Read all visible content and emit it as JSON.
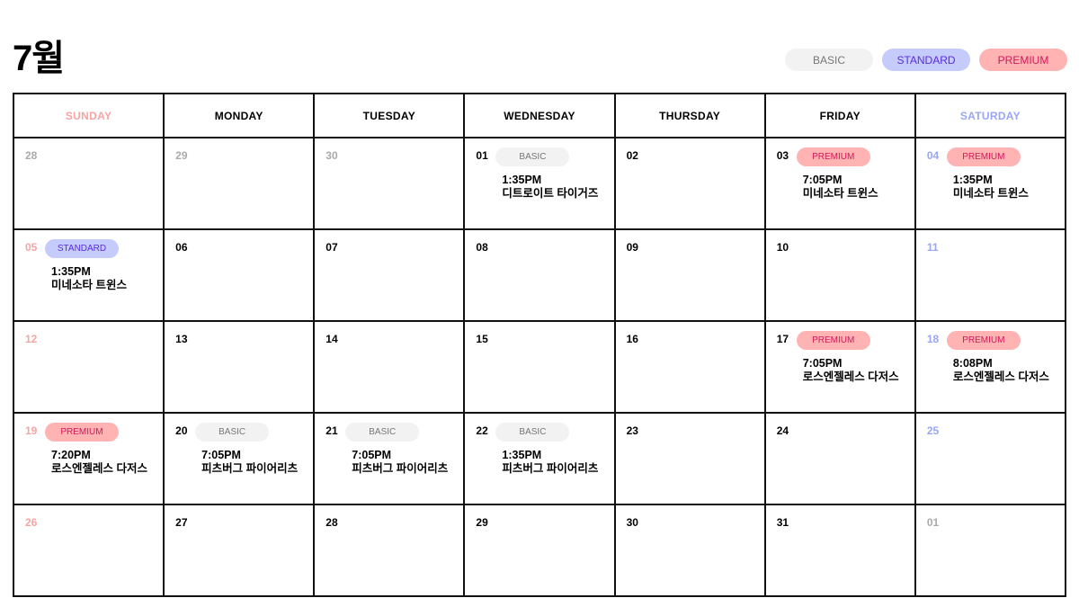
{
  "title": "7월",
  "legend": [
    {
      "label": "BASIC",
      "type": "basic"
    },
    {
      "label": "STANDARD",
      "type": "standard"
    },
    {
      "label": "PREMIUM",
      "type": "premium"
    }
  ],
  "colors": {
    "basic": "#f2f2f2",
    "standard": "#c5cbfb",
    "premium": "#ffb3b3",
    "sunday": "#f9a3a3",
    "saturday": "#9aa6f5"
  },
  "weekdays": [
    "SUNDAY",
    "MONDAY",
    "TUESDAY",
    "WEDNESDAY",
    "THURSDAY",
    "FRIDAY",
    "SATURDAY"
  ],
  "weeks": [
    [
      {
        "d": "28",
        "other": true
      },
      {
        "d": "29",
        "other": true
      },
      {
        "d": "30",
        "other": true
      },
      {
        "d": "01",
        "badge": "BASIC",
        "type": "basic",
        "time": "1:35PM",
        "team": "디트로이트 타이거즈"
      },
      {
        "d": "02"
      },
      {
        "d": "03",
        "badge": "PREMIUM",
        "type": "premium",
        "time": "7:05PM",
        "team": "미네소타 트윈스"
      },
      {
        "d": "04",
        "badge": "PREMIUM",
        "type": "premium",
        "time": "1:35PM",
        "team": "미네소타 트윈스"
      }
    ],
    [
      {
        "d": "05",
        "badge": "STANDARD",
        "type": "standard",
        "time": "1:35PM",
        "team": "미네소타 트윈스"
      },
      {
        "d": "06"
      },
      {
        "d": "07"
      },
      {
        "d": "08"
      },
      {
        "d": "09"
      },
      {
        "d": "10"
      },
      {
        "d": "11"
      }
    ],
    [
      {
        "d": "12"
      },
      {
        "d": "13"
      },
      {
        "d": "14"
      },
      {
        "d": "15"
      },
      {
        "d": "16"
      },
      {
        "d": "17",
        "badge": "PREMIUM",
        "type": "premium",
        "time": "7:05PM",
        "team": "로스엔젤레스 다저스"
      },
      {
        "d": "18",
        "badge": "PREMIUM",
        "type": "premium",
        "time": "8:08PM",
        "team": "로스엔젤레스 다저스"
      }
    ],
    [
      {
        "d": "19",
        "badge": "PREMIUM",
        "type": "premium",
        "time": "7:20PM",
        "team": "로스엔젤레스 다저스"
      },
      {
        "d": "20",
        "badge": "BASIC",
        "type": "basic",
        "time": "7:05PM",
        "team": "피츠버그 파이어리츠"
      },
      {
        "d": "21",
        "badge": "BASIC",
        "type": "basic",
        "time": "7:05PM",
        "team": "피츠버그 파이어리츠"
      },
      {
        "d": "22",
        "badge": "BASIC",
        "type": "basic",
        "time": "1:35PM",
        "team": "피츠버그 파이어리츠"
      },
      {
        "d": "23"
      },
      {
        "d": "24"
      },
      {
        "d": "25"
      }
    ],
    [
      {
        "d": "26"
      },
      {
        "d": "27"
      },
      {
        "d": "28"
      },
      {
        "d": "29"
      },
      {
        "d": "30"
      },
      {
        "d": "31"
      },
      {
        "d": "01",
        "other": true
      }
    ]
  ]
}
